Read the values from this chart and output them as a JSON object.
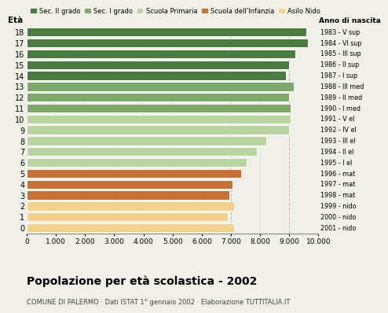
{
  "ages": [
    18,
    17,
    16,
    15,
    14,
    13,
    12,
    11,
    10,
    9,
    8,
    7,
    6,
    5,
    4,
    3,
    2,
    1,
    0
  ],
  "values": [
    9600,
    9650,
    9200,
    9000,
    8900,
    9150,
    9000,
    9050,
    9050,
    9000,
    8200,
    7900,
    7550,
    7350,
    7050,
    6950,
    7100,
    6900,
    7100
  ],
  "right_labels": [
    "1983 - V sup",
    "1984 - VI sup",
    "1985 - III sup",
    "1986 - II sup",
    "1987 - I sup",
    "1988 - III med",
    "1989 - II med",
    "1990 - I med",
    "1991 - V el",
    "1992 - IV el",
    "1993 - III el",
    "1994 - II el",
    "1995 - I el",
    "1996 - mat",
    "1997 - mat",
    "1998 - mat",
    "1999 - nido",
    "2000 - nido",
    "2001 - nido"
  ],
  "colors": {
    "Sec. II grado": "#4a7c3f",
    "Sec. I grado": "#7daa6a",
    "Scuola Primaria": "#b8d4a0",
    "Scuola dell'Infanzia": "#c87137",
    "Asilo Nido": "#f5d08a"
  },
  "age_color_map": {
    "18": "Sec. II grado",
    "17": "Sec. II grado",
    "16": "Sec. II grado",
    "15": "Sec. II grado",
    "14": "Sec. II grado",
    "13": "Sec. I grado",
    "12": "Sec. I grado",
    "11": "Sec. I grado",
    "10": "Scuola Primaria",
    "9": "Scuola Primaria",
    "8": "Scuola Primaria",
    "7": "Scuola Primaria",
    "6": "Scuola Primaria",
    "5": "Scuola dell'Infanzia",
    "4": "Scuola dell'Infanzia",
    "3": "Scuola dell'Infanzia",
    "2": "Asilo Nido",
    "1": "Asilo Nido",
    "0": "Asilo Nido"
  },
  "xlabel_vals": [
    0,
    1000,
    2000,
    3000,
    4000,
    5000,
    6000,
    7000,
    8000,
    9000,
    10000
  ],
  "xlabel_labels": [
    "0",
    "1.000",
    "2.000",
    "3.000",
    "4.000",
    "5.000",
    "6.000",
    "7.000",
    "8.000",
    "9.000",
    "10.000"
  ],
  "title": "Popolazione per età scolastica - 2002",
  "subtitle": "COMUNE DI PALERMO · Dati ISTAT 1° gennaio 2002 · Elaborazione TUTTITALIA.IT",
  "eta_label": "Età",
  "anno_label": "Anno di nascita",
  "xlim": [
    0,
    10000
  ],
  "background_color": "#f0f0e8",
  "bar_height": 0.82,
  "grid_color": "#bbbbbb",
  "dashed_lines": [
    7000,
    9000
  ]
}
